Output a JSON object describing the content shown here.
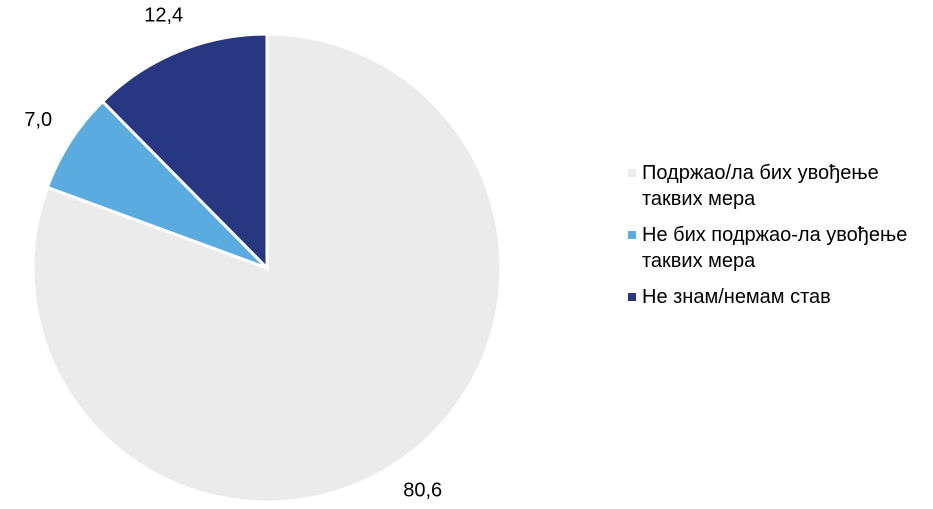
{
  "chart_data": {
    "type": "pie",
    "categories": [
      "Подржао/ла бих увођење таквих мера",
      "Не бих подржао-ла увођење таквих мера",
      "Не знам/немам став"
    ],
    "values": [
      80.6,
      7.0,
      12.4
    ],
    "value_labels": [
      "80,6",
      "7,0",
      "12,4"
    ],
    "colors": [
      "#ebebeb",
      "#5aace0",
      "#283782"
    ],
    "legend": "right"
  }
}
